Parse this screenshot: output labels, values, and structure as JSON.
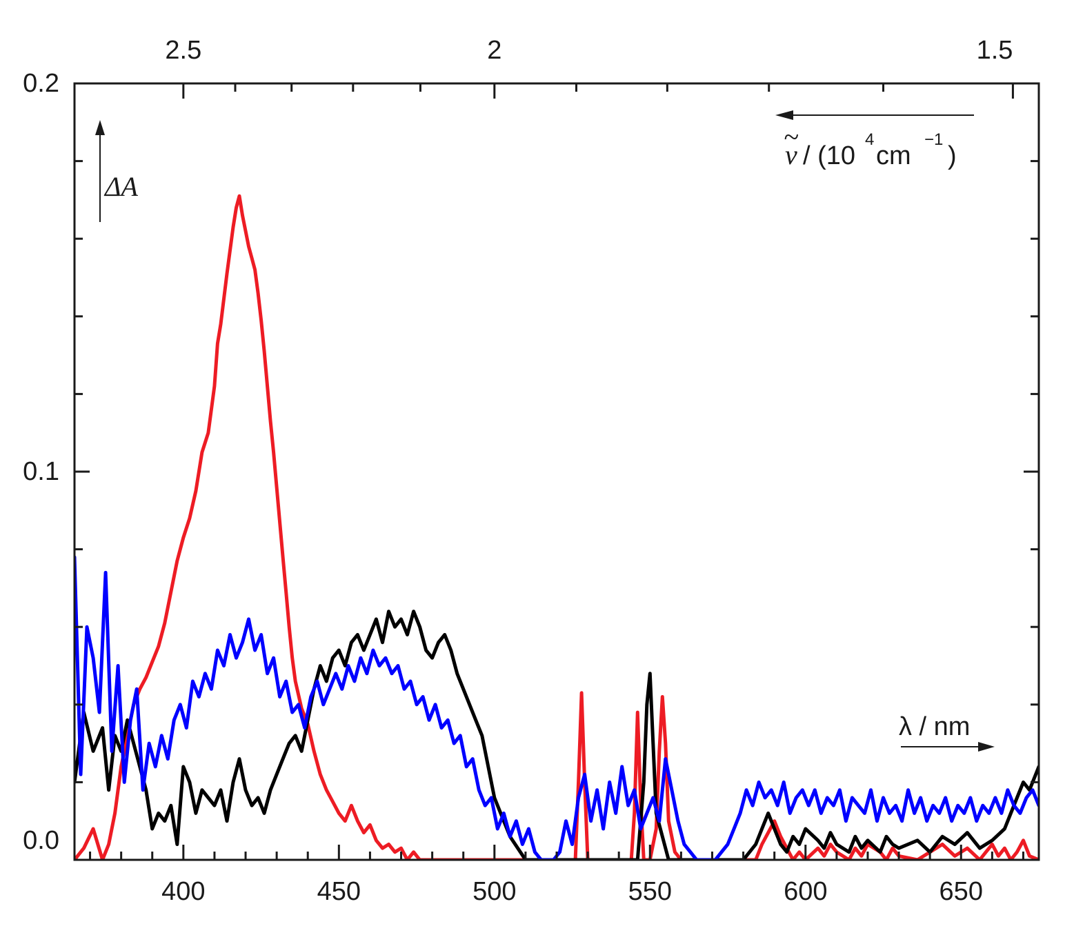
{
  "chart_data": {
    "type": "line",
    "x_axis": {
      "min": 365,
      "max": 675,
      "ticks": [
        "400",
        "450",
        "500",
        "550",
        "600",
        "650"
      ],
      "tick_values": [
        400,
        450,
        500,
        550,
        600,
        650
      ],
      "minor_step": 10
    },
    "top_axis": {
      "ticks": [
        "2.5",
        "2",
        "1.5"
      ],
      "tick_values": [
        2.5,
        2.0,
        1.5
      ],
      "minor_values": [
        2.4,
        2.3,
        2.2,
        2.1,
        1.9,
        1.8,
        1.7,
        1.6
      ]
    },
    "y_axis": {
      "min": 0.0,
      "max": 0.2,
      "ticks": [
        "0.0",
        "0.1",
        "0.2"
      ],
      "tick_values": [
        0.0,
        0.1,
        0.2
      ],
      "minor_step": 0.02
    },
    "annotations": {
      "y_label": "ΔA",
      "x_label": "λ / nm",
      "top_label_nu": "ν",
      "top_label_tilde": "~",
      "top_label_open": "/ (10",
      "top_label_exp": "4",
      "top_label_cm": " cm",
      "top_label_exp2": "−1",
      "top_label_close": ")"
    },
    "series": [
      {
        "color": "#ed1c24",
        "x": [
          365,
          368,
          371,
          374,
          376,
          378,
          380,
          382,
          384,
          386,
          388,
          390,
          392,
          394,
          396,
          398,
          400,
          402,
          404,
          406,
          408,
          410,
          411,
          412,
          414,
          416,
          417,
          418,
          419,
          420,
          421,
          422,
          423,
          424,
          425,
          426,
          427,
          428,
          429,
          430,
          431,
          432,
          433,
          434,
          435,
          436,
          438,
          440,
          442,
          444,
          446,
          448,
          450,
          452,
          454,
          456,
          458,
          460,
          462,
          464,
          466,
          468,
          470,
          472,
          474,
          476,
          478,
          480,
          490,
          500,
          510,
          520,
          526,
          527,
          528,
          529,
          530,
          540,
          544,
          545,
          546,
          547,
          548,
          550,
          552,
          553,
          554,
          555,
          556,
          558,
          560,
          570,
          580,
          584,
          586,
          588,
          590,
          592,
          594,
          596,
          598,
          600,
          604,
          606,
          608,
          610,
          614,
          616,
          618,
          620,
          624,
          626,
          628,
          630,
          636,
          640,
          644,
          648,
          652,
          656,
          658,
          660,
          662,
          664,
          666,
          668,
          670,
          672,
          675
        ],
        "y": [
          0.0,
          0.003,
          0.008,
          0.0,
          0.004,
          0.012,
          0.024,
          0.032,
          0.04,
          0.044,
          0.047,
          0.051,
          0.055,
          0.061,
          0.069,
          0.077,
          0.083,
          0.088,
          0.095,
          0.105,
          0.11,
          0.122,
          0.133,
          0.138,
          0.151,
          0.163,
          0.168,
          0.171,
          0.166,
          0.162,
          0.158,
          0.155,
          0.152,
          0.146,
          0.139,
          0.131,
          0.122,
          0.113,
          0.105,
          0.096,
          0.087,
          0.078,
          0.069,
          0.06,
          0.052,
          0.046,
          0.039,
          0.035,
          0.028,
          0.022,
          0.018,
          0.015,
          0.012,
          0.01,
          0.014,
          0.01,
          0.007,
          0.009,
          0.005,
          0.003,
          0.004,
          0.002,
          0.003,
          0.0,
          0.002,
          0.0,
          0.0,
          0.0,
          0.0,
          0.0,
          0.0,
          0.0,
          0.0,
          0.02,
          0.043,
          0.02,
          0.0,
          0.0,
          0.0,
          0.012,
          0.038,
          0.015,
          0.0,
          0.0,
          0.008,
          0.028,
          0.042,
          0.03,
          0.01,
          0.002,
          0.0,
          0.0,
          0.0,
          0.0,
          0.004,
          0.007,
          0.01,
          0.006,
          0.003,
          0.0,
          0.002,
          0.0,
          0.003,
          0.001,
          0.004,
          0.002,
          0.0,
          0.003,
          0.001,
          0.004,
          0.002,
          0.0,
          0.003,
          0.001,
          0.0,
          0.002,
          0.004,
          0.001,
          0.003,
          0.0,
          0.002,
          0.004,
          0.001,
          0.003,
          0.0,
          0.002,
          0.005,
          0.001,
          0.0
        ]
      },
      {
        "color": "#000000",
        "x": [
          365,
          368,
          371,
          374,
          376,
          378,
          380,
          382,
          384,
          386,
          388,
          390,
          392,
          394,
          396,
          398,
          400,
          402,
          404,
          406,
          408,
          410,
          412,
          414,
          416,
          418,
          420,
          422,
          424,
          426,
          428,
          430,
          432,
          434,
          436,
          438,
          440,
          442,
          444,
          446,
          448,
          450,
          452,
          454,
          456,
          458,
          460,
          462,
          464,
          466,
          468,
          470,
          472,
          474,
          476,
          478,
          480,
          482,
          484,
          486,
          488,
          490,
          492,
          494,
          496,
          498,
          500,
          505,
          510,
          520,
          540,
          546,
          548,
          549,
          550,
          551,
          552,
          556,
          570,
          580,
          584,
          586,
          588,
          590,
          592,
          594,
          596,
          598,
          600,
          604,
          606,
          608,
          610,
          614,
          616,
          618,
          620,
          624,
          626,
          628,
          630,
          636,
          640,
          644,
          648,
          652,
          656,
          660,
          664,
          666,
          668,
          670,
          672,
          675
        ],
        "y": [
          0.02,
          0.038,
          0.028,
          0.034,
          0.018,
          0.032,
          0.028,
          0.036,
          0.03,
          0.024,
          0.018,
          0.008,
          0.012,
          0.01,
          0.014,
          0.004,
          0.024,
          0.02,
          0.012,
          0.018,
          0.016,
          0.014,
          0.018,
          0.01,
          0.02,
          0.026,
          0.018,
          0.014,
          0.016,
          0.012,
          0.018,
          0.022,
          0.026,
          0.03,
          0.032,
          0.028,
          0.036,
          0.044,
          0.05,
          0.046,
          0.052,
          0.054,
          0.05,
          0.056,
          0.058,
          0.054,
          0.058,
          0.062,
          0.056,
          0.064,
          0.06,
          0.062,
          0.058,
          0.064,
          0.06,
          0.054,
          0.052,
          0.056,
          0.058,
          0.054,
          0.048,
          0.044,
          0.04,
          0.036,
          0.032,
          0.024,
          0.016,
          0.006,
          0.0,
          0.0,
          0.0,
          0.0,
          0.02,
          0.04,
          0.048,
          0.03,
          0.012,
          0.0,
          0.0,
          0.0,
          0.004,
          0.008,
          0.012,
          0.008,
          0.004,
          0.002,
          0.006,
          0.004,
          0.008,
          0.005,
          0.003,
          0.007,
          0.004,
          0.002,
          0.006,
          0.003,
          0.005,
          0.002,
          0.006,
          0.004,
          0.003,
          0.005,
          0.002,
          0.006,
          0.004,
          0.007,
          0.003,
          0.005,
          0.008,
          0.012,
          0.016,
          0.02,
          0.018,
          0.024
        ]
      },
      {
        "color": "#0000ff",
        "x": [
          365,
          367,
          369,
          371,
          373,
          375,
          377,
          379,
          381,
          383,
          385,
          387,
          389,
          391,
          393,
          395,
          397,
          399,
          401,
          403,
          405,
          407,
          409,
          411,
          413,
          415,
          417,
          419,
          421,
          423,
          425,
          427,
          429,
          431,
          433,
          435,
          437,
          439,
          441,
          443,
          445,
          447,
          449,
          451,
          453,
          455,
          457,
          459,
          461,
          463,
          465,
          467,
          469,
          471,
          473,
          475,
          477,
          479,
          481,
          483,
          485,
          487,
          489,
          491,
          493,
          495,
          497,
          499,
          501,
          503,
          505,
          507,
          509,
          511,
          513,
          515,
          517,
          519,
          521,
          523,
          525,
          527,
          529,
          531,
          533,
          535,
          537,
          539,
          541,
          543,
          545,
          547,
          549,
          551,
          553,
          555,
          557,
          559,
          561,
          563,
          565,
          567,
          569,
          571,
          573,
          575,
          577,
          579,
          581,
          583,
          585,
          587,
          589,
          591,
          593,
          595,
          597,
          599,
          601,
          603,
          605,
          607,
          609,
          611,
          613,
          615,
          617,
          619,
          621,
          623,
          625,
          627,
          629,
          631,
          633,
          635,
          637,
          639,
          641,
          643,
          645,
          647,
          649,
          651,
          653,
          655,
          657,
          659,
          661,
          663,
          665,
          667,
          669,
          671,
          673,
          675
        ],
        "y": [
          0.078,
          0.022,
          0.06,
          0.052,
          0.038,
          0.074,
          0.028,
          0.05,
          0.02,
          0.036,
          0.044,
          0.018,
          0.03,
          0.024,
          0.032,
          0.026,
          0.036,
          0.04,
          0.034,
          0.046,
          0.042,
          0.048,
          0.044,
          0.054,
          0.05,
          0.058,
          0.052,
          0.056,
          0.062,
          0.054,
          0.058,
          0.048,
          0.052,
          0.042,
          0.046,
          0.038,
          0.04,
          0.034,
          0.042,
          0.046,
          0.04,
          0.044,
          0.048,
          0.044,
          0.05,
          0.046,
          0.052,
          0.048,
          0.054,
          0.05,
          0.052,
          0.048,
          0.05,
          0.044,
          0.046,
          0.04,
          0.042,
          0.036,
          0.04,
          0.034,
          0.036,
          0.03,
          0.032,
          0.024,
          0.026,
          0.018,
          0.014,
          0.016,
          0.008,
          0.012,
          0.006,
          0.01,
          0.004,
          0.008,
          0.002,
          0.0,
          0.0,
          0.0,
          0.002,
          0.01,
          0.004,
          0.016,
          0.022,
          0.01,
          0.018,
          0.008,
          0.02,
          0.012,
          0.024,
          0.014,
          0.018,
          0.008,
          0.012,
          0.016,
          0.01,
          0.026,
          0.018,
          0.01,
          0.004,
          0.002,
          0.0,
          0.0,
          0.0,
          0.0,
          0.002,
          0.004,
          0.008,
          0.012,
          0.018,
          0.014,
          0.02,
          0.016,
          0.018,
          0.014,
          0.02,
          0.012,
          0.016,
          0.018,
          0.014,
          0.018,
          0.012,
          0.016,
          0.014,
          0.018,
          0.01,
          0.016,
          0.014,
          0.012,
          0.018,
          0.01,
          0.016,
          0.012,
          0.014,
          0.01,
          0.018,
          0.012,
          0.016,
          0.01,
          0.014,
          0.012,
          0.016,
          0.01,
          0.014,
          0.012,
          0.016,
          0.01,
          0.014,
          0.012,
          0.016,
          0.012,
          0.018,
          0.014,
          0.012,
          0.016,
          0.018,
          0.014
        ]
      }
    ]
  }
}
